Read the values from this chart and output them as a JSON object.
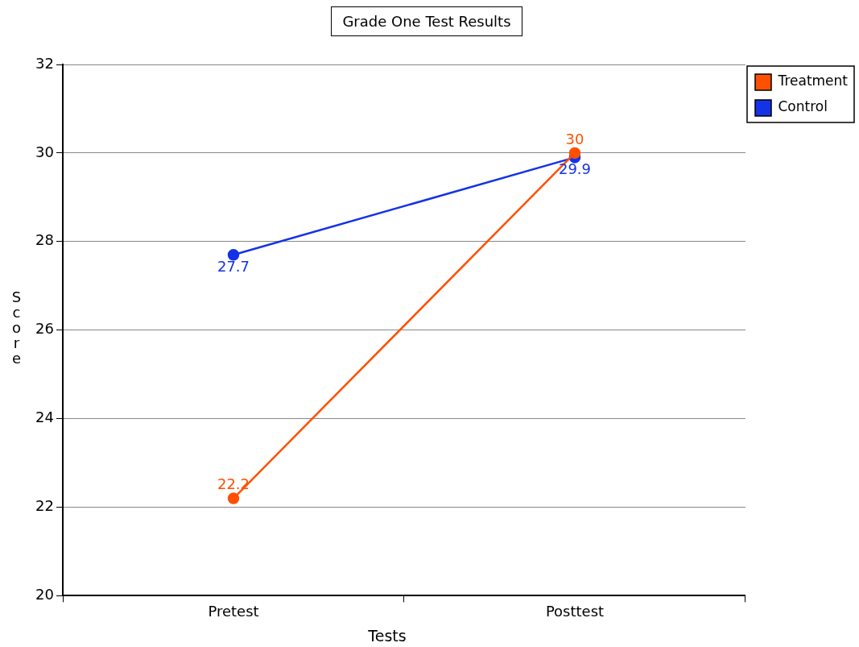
{
  "chart_data": {
    "type": "line",
    "title": "Grade One Test Results",
    "xlabel": "Tests",
    "ylabel": "Score",
    "categories": [
      "Pretest",
      "Posttest"
    ],
    "series": [
      {
        "name": "Treatment",
        "color": "#ff5000",
        "values": [
          22.2,
          30
        ]
      },
      {
        "name": "Control",
        "color": "#1432e6",
        "values": [
          27.7,
          29.9
        ]
      }
    ],
    "ylim": [
      20,
      32
    ],
    "yticks": [
      20,
      22,
      24,
      26,
      28,
      30,
      32
    ],
    "grid": "y",
    "legend": "top right",
    "marker": "circle",
    "line_style": "solid",
    "data_labels": true
  }
}
